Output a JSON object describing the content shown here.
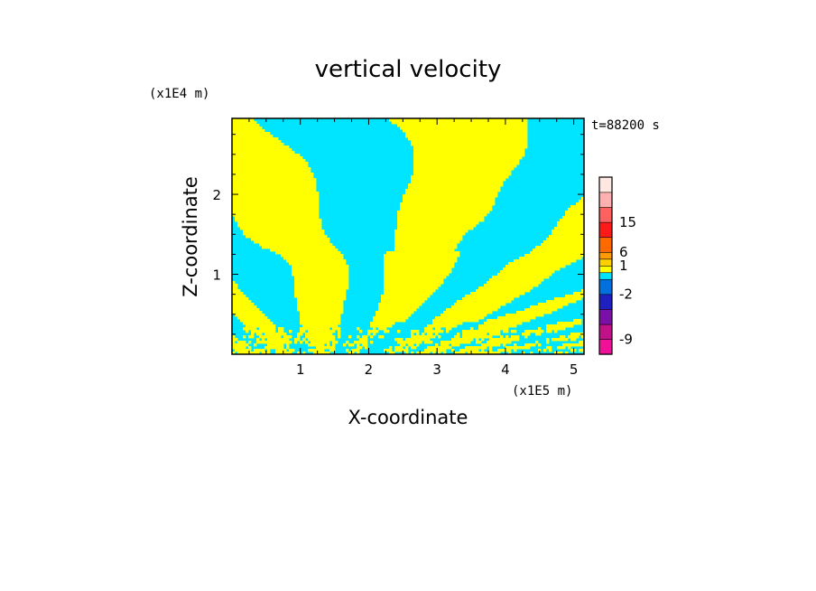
{
  "chart_data": {
    "type": "heatmap",
    "title": "vertical velocity",
    "xlabel": "X-coordinate",
    "ylabel": "Z-coordinate",
    "x_scale_note": "(x1E5 m)",
    "y_scale_note": "(x1E4 m)",
    "time_label": "t=88200 s",
    "xlim": [
      0,
      5.15
    ],
    "ylim": [
      0,
      2.95
    ],
    "x_ticks": [
      1,
      2,
      3,
      4,
      5
    ],
    "y_ticks": [
      1,
      2
    ],
    "field_colors": {
      "positive": "#ffff00",
      "negative": "#00e5ff"
    },
    "colorbar": {
      "tick_labels": [
        "15",
        "6",
        "1",
        "-2",
        "-9"
      ],
      "bands": [
        {
          "color": "#f0109a"
        },
        {
          "color": "#c0108a"
        },
        {
          "color": "#7a10a8"
        },
        {
          "color": "#2020c0"
        },
        {
          "color": "#0070e0"
        },
        {
          "color": "#00e5ff"
        },
        {
          "color": "#ffff00"
        },
        {
          "color": "#ffd000"
        },
        {
          "color": "#ff9a00"
        },
        {
          "color": "#ff6a00"
        },
        {
          "color": "#ff1a1a"
        },
        {
          "color": "#ff6060"
        },
        {
          "color": "#ffb0b0"
        },
        {
          "color": "#ffe8e0"
        }
      ]
    }
  }
}
